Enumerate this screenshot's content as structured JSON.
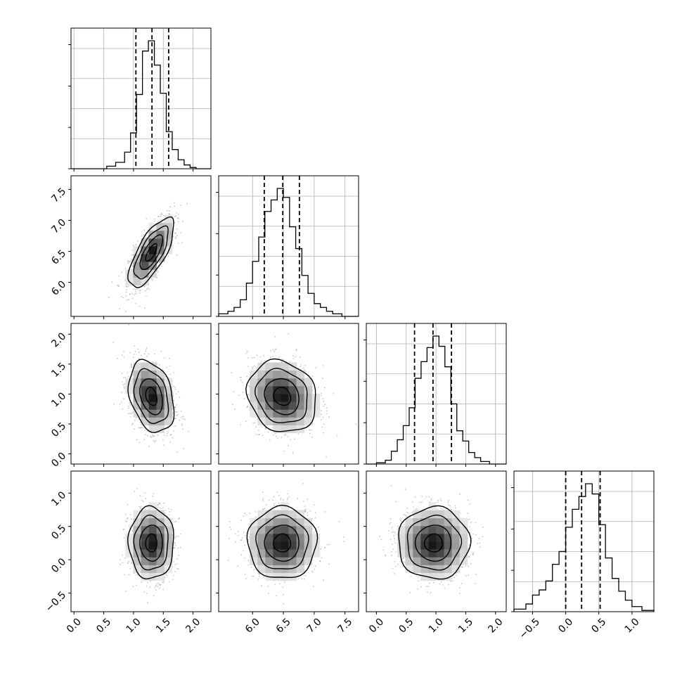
{
  "chart_data": {
    "type": "corner",
    "style": {
      "hist_color": "#000000",
      "scatter_color": "#808080",
      "contour_color": "#000000",
      "grid": true,
      "grid_color": "#b0b0b0",
      "quantile_line_style": "dashed"
    },
    "parameters": [
      {
        "range": [
          -0.05,
          2.3
        ],
        "ticks": [
          0.0,
          0.5,
          1.0,
          1.5,
          2.0
        ],
        "tick_labels": [
          "0.0",
          "0.5",
          "1.0",
          "1.5",
          "2.0"
        ],
        "quantiles": [
          1.04,
          1.31,
          1.59
        ],
        "hist_bins": [
          -0.05,
          0.1,
          0.25,
          0.4,
          0.55,
          0.7,
          0.85,
          0.95,
          1.05,
          1.15,
          1.25,
          1.35,
          1.45,
          1.55,
          1.65,
          1.75,
          1.85,
          1.95,
          2.05,
          2.15,
          2.3
        ],
        "hist_counts": [
          0,
          0,
          0,
          0,
          0.02,
          0.05,
          0.13,
          0.28,
          0.58,
          0.92,
          1.0,
          0.81,
          0.59,
          0.29,
          0.15,
          0.07,
          0.03,
          0.01,
          0.0,
          0.0
        ]
      },
      {
        "range": [
          5.45,
          7.72
        ],
        "ticks": [
          6.0,
          6.5,
          7.0,
          7.5
        ],
        "tick_labels": [
          "6.0",
          "6.5",
          "7.0",
          "7.5"
        ],
        "quantiles": [
          6.19,
          6.49,
          6.76
        ],
        "hist_bins": [
          5.45,
          5.6,
          5.7,
          5.8,
          5.9,
          6.0,
          6.1,
          6.2,
          6.3,
          6.4,
          6.5,
          6.6,
          6.7,
          6.8,
          6.9,
          7.0,
          7.1,
          7.2,
          7.3,
          7.45,
          7.72
        ],
        "hist_counts": [
          0.02,
          0.04,
          0.07,
          0.13,
          0.26,
          0.43,
          0.62,
          0.82,
          0.91,
          1.0,
          0.93,
          0.7,
          0.53,
          0.32,
          0.18,
          0.1,
          0.07,
          0.04,
          0.02,
          0.0
        ]
      },
      {
        "range": [
          -0.17,
          2.18
        ],
        "ticks": [
          0.0,
          0.5,
          1.0,
          1.5,
          2.0
        ],
        "tick_labels": [
          "0.0",
          "0.5",
          "1.0",
          "1.5",
          "2.0"
        ],
        "quantiles": [
          0.64,
          0.95,
          1.26
        ],
        "hist_bins": [
          -0.17,
          0.0,
          0.15,
          0.25,
          0.35,
          0.45,
          0.55,
          0.65,
          0.75,
          0.85,
          0.95,
          1.05,
          1.15,
          1.25,
          1.35,
          1.45,
          1.55,
          1.65,
          1.75,
          1.9,
          2.18
        ],
        "hist_counts": [
          0.0,
          0.01,
          0.03,
          0.1,
          0.19,
          0.3,
          0.44,
          0.67,
          0.8,
          0.91,
          1.0,
          0.92,
          0.76,
          0.47,
          0.26,
          0.18,
          0.09,
          0.05,
          0.02,
          0.0
        ]
      },
      {
        "range": [
          -0.78,
          1.33
        ],
        "ticks": [
          -0.5,
          0.0,
          0.5,
          1.0
        ],
        "tick_labels": [
          "−0.5",
          "0.0",
          "0.5",
          "1.0"
        ],
        "quantiles": [
          0.0,
          0.24,
          0.52
        ],
        "hist_bins": [
          -0.78,
          -0.6,
          -0.5,
          -0.4,
          -0.3,
          -0.2,
          -0.1,
          0.0,
          0.1,
          0.2,
          0.3,
          0.4,
          0.5,
          0.6,
          0.7,
          0.8,
          0.9,
          1.0,
          1.15,
          1.33
        ],
        "hist_counts": [
          0.02,
          0.06,
          0.13,
          0.17,
          0.24,
          0.37,
          0.47,
          0.66,
          0.8,
          0.9,
          1.0,
          0.92,
          0.68,
          0.42,
          0.26,
          0.16,
          0.09,
          0.04,
          0.01
        ]
      }
    ],
    "pairs": [
      {
        "x": 0,
        "y": 1,
        "mean": [
          1.3,
          6.48
        ],
        "sd": [
          0.19,
          0.28
        ],
        "corr": 0.72
      },
      {
        "x": 0,
        "y": 2,
        "mean": [
          1.3,
          0.96
        ],
        "sd": [
          0.19,
          0.3
        ],
        "corr": -0.3
      },
      {
        "x": 1,
        "y": 2,
        "mean": [
          6.48,
          0.96
        ],
        "sd": [
          0.28,
          0.3
        ],
        "corr": -0.15
      },
      {
        "x": 0,
        "y": 3,
        "mean": [
          1.3,
          0.25
        ],
        "sd": [
          0.19,
          0.27
        ],
        "corr": 0.0
      },
      {
        "x": 1,
        "y": 3,
        "mean": [
          6.48,
          0.25
        ],
        "sd": [
          0.28,
          0.27
        ],
        "corr": 0.0
      },
      {
        "x": 2,
        "y": 3,
        "mean": [
          0.96,
          0.25
        ],
        "sd": [
          0.3,
          0.27
        ],
        "corr": 0.0
      }
    ]
  }
}
